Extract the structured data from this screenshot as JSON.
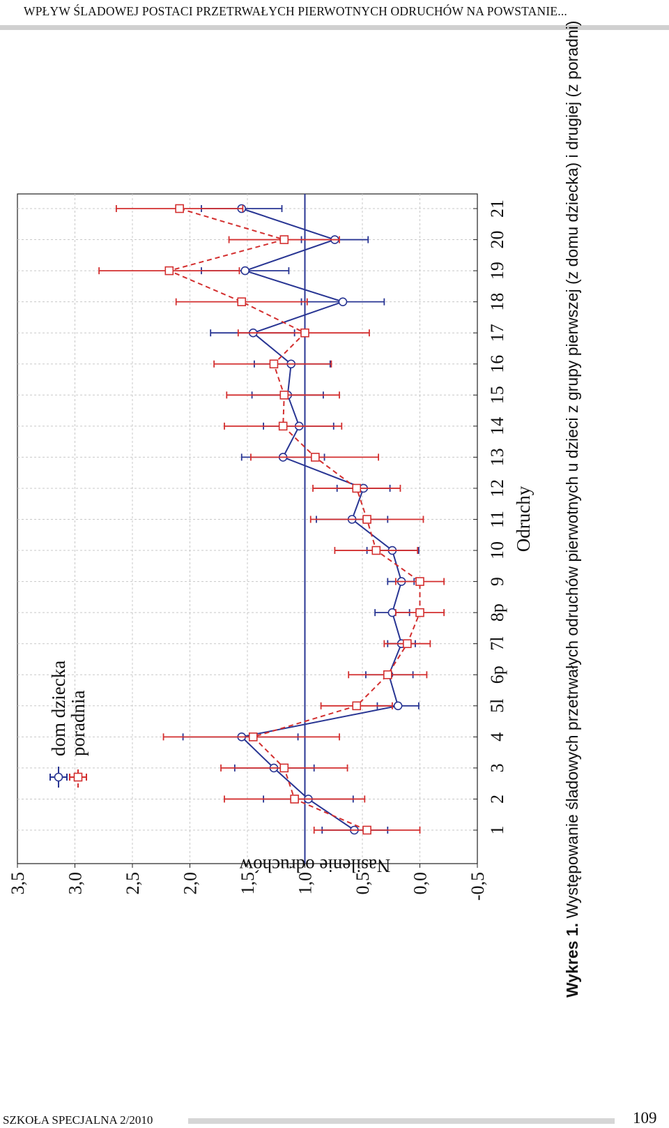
{
  "header": {
    "title": "WPŁYW ŚLADOWEJ POSTACI PRZETRWAŁYCH PIERWOTNYCH ODRUCHÓW NA POWSTANIE..."
  },
  "caption": {
    "label": "Wykres 1.",
    "text": "Występowanie śladowych przetrwałych odruchów pierwotnych u dzieci z grupy pierwszej (z domu dziecka) i drugiej (z poradni)"
  },
  "footer": {
    "journal": "SZKOŁA SPECJALNA 2/2010",
    "page": "109"
  },
  "chart_data": {
    "type": "line",
    "orientation": "rotated 90° counter-clockwise",
    "xlabel": "Odruchy",
    "ylabel": "Nasilenie odruchów",
    "categories": [
      "1",
      "2",
      "3",
      "4",
      "5l",
      "6p",
      "7l",
      "8p",
      "9",
      "10",
      "11",
      "12",
      "13",
      "14",
      "15",
      "16",
      "17",
      "18",
      "19",
      "20",
      "21"
    ],
    "ylim": [
      -0.5,
      3.5
    ],
    "yticks": [
      "-0,5",
      "0,0",
      "0,5",
      "1,0",
      "1,5",
      "2,0",
      "2,5",
      "3,0",
      "3,5"
    ],
    "grid": true,
    "reference_line": 1.0,
    "legend_position": "top-left",
    "series": [
      {
        "name": "dom dziecka",
        "color": "#283593",
        "marker": "circle",
        "line": "solid",
        "values": [
          0.57,
          0.97,
          1.27,
          1.55,
          0.19,
          0.27,
          0.16,
          0.24,
          0.16,
          0.24,
          0.59,
          0.49,
          1.19,
          1.05,
          1.15,
          1.12,
          1.45,
          0.67,
          1.52,
          0.74,
          1.55
        ],
        "err_low": [
          0.28,
          0.58,
          0.92,
          1.06,
          0.01,
          0.06,
          0.04,
          0.09,
          0.05,
          0.01,
          0.28,
          0.26,
          0.83,
          0.75,
          0.84,
          0.78,
          1.09,
          0.31,
          1.14,
          0.45,
          1.2
        ],
        "err_high": [
          0.85,
          1.36,
          1.61,
          2.06,
          0.37,
          0.47,
          0.28,
          0.39,
          0.28,
          0.46,
          0.9,
          0.72,
          1.55,
          1.36,
          1.46,
          1.44,
          1.82,
          1.03,
          1.9,
          1.03,
          1.9
        ]
      },
      {
        "name": "poradnia",
        "color": "#d32f2f",
        "marker": "square",
        "line": "dashed",
        "values": [
          0.46,
          1.09,
          1.18,
          1.45,
          0.55,
          0.28,
          0.11,
          0.0,
          0.0,
          0.38,
          0.46,
          0.55,
          0.91,
          1.19,
          1.18,
          1.27,
          1.0,
          1.55,
          2.18,
          1.18,
          2.09
        ],
        "err_low": [
          0.0,
          0.48,
          0.63,
          0.7,
          0.24,
          -0.06,
          -0.09,
          -0.21,
          -0.21,
          0.02,
          -0.03,
          0.17,
          0.36,
          0.68,
          0.7,
          0.77,
          0.44,
          0.98,
          1.57,
          0.7,
          1.54
        ],
        "err_high": [
          0.92,
          1.7,
          1.73,
          2.23,
          0.86,
          0.62,
          0.31,
          0.21,
          0.21,
          0.74,
          0.95,
          0.93,
          1.47,
          1.7,
          1.68,
          1.79,
          1.58,
          2.12,
          2.79,
          1.66,
          2.64
        ]
      }
    ]
  }
}
